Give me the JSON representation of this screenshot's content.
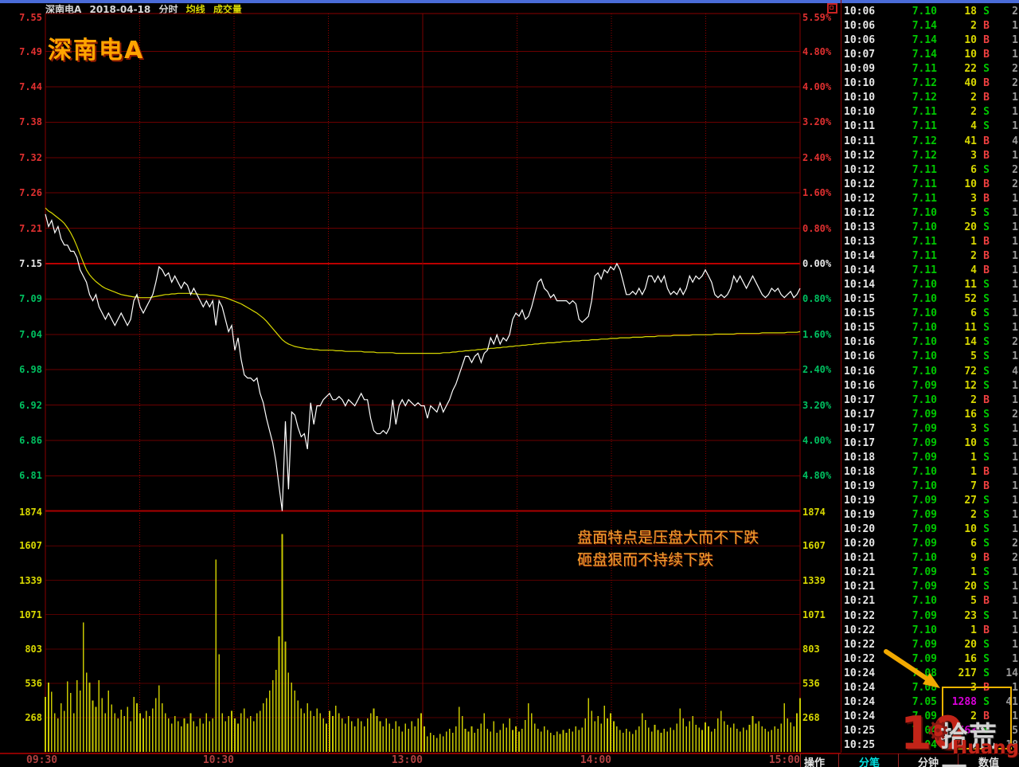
{
  "header": {
    "stock_name": "深南电A",
    "date": "2018-04-18",
    "chart_type": "分时",
    "legend_avg": "均线",
    "legend_vol": "成交量"
  },
  "watermark_title": "深南电A",
  "annotation": {
    "line1": "盘面特点是压盘大而不下跌",
    "line2": "砸盘狠而不持续下跌"
  },
  "site_watermark": {
    "logo": "10",
    "site_name": "拾荒网",
    "domain": "Huang.CN",
    "gear_icon": "⚙"
  },
  "bottom_bar": {
    "action": "操作",
    "tabs": [
      "分笔",
      "分钟",
      "数值"
    ],
    "active_tab": "分笔"
  },
  "axes": {
    "price_labels": [
      "7.55",
      "7.49",
      "7.44",
      "7.38",
      "7.32",
      "7.26",
      "7.21",
      "7.15",
      "7.09",
      "7.04",
      "6.98",
      "6.92",
      "6.86",
      "6.81"
    ],
    "pct_labels": [
      "5.59%",
      "4.80%",
      "4.00%",
      "3.20%",
      "2.40%",
      "1.60%",
      "0.80%",
      "0.00%",
      "0.80%",
      "1.60%",
      "2.40%",
      "3.20%",
      "4.00%",
      "4.80%"
    ],
    "pct_values": [
      5.59,
      4.8,
      4.0,
      3.2,
      2.4,
      1.6,
      0.8,
      0.0,
      -0.8,
      -1.6,
      -2.4,
      -3.2,
      -4.0,
      -4.8
    ],
    "volume_labels": [
      "1874",
      "1607",
      "1339",
      "1071",
      "803",
      "536",
      "268"
    ],
    "volume_values": [
      1874,
      1607,
      1339,
      1071,
      803,
      536,
      268
    ],
    "time_labels": [
      "09:30",
      "10:30",
      "13:00",
      "14:00",
      "15:00"
    ]
  },
  "colors": {
    "up": "#e03030",
    "down": "#00c060",
    "flat": "#e8e8e8",
    "volume": "#c8c800",
    "price_line": "#ffffff",
    "avg_line": "#d8d800",
    "grid": "#6b0000",
    "accent_box": "#f0b400",
    "magenta_big": "#d800d8",
    "tab_active": "#00e0e0"
  },
  "chart_data": {
    "type": "line",
    "title": "深南电A 2018-04-18 分时",
    "prev_close": 7.15,
    "ylim_pct": [
      -5.59,
      5.59
    ],
    "volume_max": 1874,
    "x_sessions": [
      "09:30-11:30",
      "13:00-15:00"
    ],
    "series": [
      {
        "name": "price",
        "values": [
          7.23,
          7.21,
          7.22,
          7.2,
          7.21,
          7.19,
          7.18,
          7.18,
          7.17,
          7.17,
          7.16,
          7.14,
          7.13,
          7.12,
          7.1,
          7.09,
          7.1,
          7.08,
          7.07,
          7.06,
          7.07,
          7.06,
          7.05,
          7.06,
          7.07,
          7.06,
          7.05,
          7.06,
          7.09,
          7.1,
          7.08,
          7.07,
          7.08,
          7.09,
          7.1,
          7.12,
          7.145,
          7.14,
          7.13,
          7.135,
          7.12,
          7.13,
          7.12,
          7.11,
          7.12,
          7.115,
          7.1,
          7.11,
          7.1,
          7.09,
          7.08,
          7.09,
          7.08,
          7.09,
          7.05,
          7.09,
          7.08,
          7.06,
          7.04,
          7.05,
          7.01,
          7.03,
          6.995,
          6.97,
          6.965,
          6.965,
          6.96,
          6.965,
          6.94,
          6.925,
          6.9,
          6.88,
          6.86,
          6.83,
          6.79,
          6.75,
          6.895,
          6.785,
          6.91,
          6.905,
          6.885,
          6.87,
          6.875,
          6.85,
          6.925,
          6.89,
          6.92,
          6.92,
          6.93,
          6.935,
          6.94,
          6.93,
          6.93,
          6.935,
          6.93,
          6.92,
          6.93,
          6.925,
          6.92,
          6.93,
          6.94,
          6.93,
          6.93,
          6.9,
          6.88,
          6.875,
          6.875,
          6.88,
          6.875,
          6.885,
          6.93,
          6.89,
          6.92,
          6.93,
          6.92,
          6.93,
          6.925,
          6.92,
          6.925,
          6.92,
          6.92,
          6.9,
          6.92,
          6.915,
          6.91,
          6.925,
          6.91,
          6.92,
          6.93,
          6.945,
          6.955,
          6.97,
          6.985,
          7.0,
          7.0,
          6.99,
          7.0,
          7.005,
          6.99,
          7.005,
          7.01,
          7.03,
          7.02,
          7.035,
          7.02,
          7.03,
          7.025,
          7.035,
          7.06,
          7.07,
          7.065,
          7.075,
          7.06,
          7.065,
          7.08,
          7.1,
          7.12,
          7.125,
          7.11,
          7.105,
          7.095,
          7.1,
          7.09,
          7.09,
          7.09,
          7.09,
          7.085,
          7.09,
          7.085,
          7.06,
          7.055,
          7.06,
          7.065,
          7.09,
          7.13,
          7.135,
          7.125,
          7.14,
          7.135,
          7.145,
          7.14,
          7.15,
          7.14,
          7.12,
          7.1,
          7.1,
          7.105,
          7.1,
          7.11,
          7.1,
          7.11,
          7.13,
          7.13,
          7.12,
          7.13,
          7.12,
          7.13,
          7.11,
          7.1,
          7.105,
          7.1,
          7.11,
          7.1,
          7.11,
          7.13,
          7.12,
          7.13,
          7.125,
          7.13,
          7.14,
          7.13,
          7.12,
          7.1,
          7.095,
          7.1,
          7.095,
          7.1,
          7.11,
          7.13,
          7.12,
          7.13,
          7.12,
          7.11,
          7.12,
          7.13,
          7.12,
          7.11,
          7.1,
          7.095,
          7.1,
          7.11,
          7.105,
          7.11,
          7.1,
          7.095,
          7.1,
          7.105,
          7.095,
          7.1,
          7.11
        ]
      },
      {
        "name": "average",
        "values": [
          7.24,
          7.235,
          7.232,
          7.228,
          7.224,
          7.22,
          7.215,
          7.208,
          7.2,
          7.19,
          7.178,
          7.165,
          7.152,
          7.14,
          7.132,
          7.126,
          7.121,
          7.117,
          7.113,
          7.11,
          7.108,
          7.106,
          7.104,
          7.102,
          7.1,
          7.099,
          7.098,
          7.097,
          7.096,
          7.096,
          7.095,
          7.095,
          7.095,
          7.095,
          7.096,
          7.097,
          7.098,
          7.099,
          7.1,
          7.1,
          7.101,
          7.101,
          7.102,
          7.102,
          7.102,
          7.102,
          7.102,
          7.101,
          7.101,
          7.1,
          7.1,
          7.1,
          7.099,
          7.099,
          7.098,
          7.097,
          7.096,
          7.095,
          7.093,
          7.091,
          7.089,
          7.087,
          7.085,
          7.082,
          7.079,
          7.076,
          7.073,
          7.07,
          7.066,
          7.062,
          7.057,
          7.051,
          7.045,
          7.039,
          7.033,
          7.027,
          7.023,
          7.02,
          7.018,
          7.016,
          7.015,
          7.014,
          7.013,
          7.012,
          7.012,
          7.011,
          7.011,
          7.01,
          7.01,
          7.01,
          7.01,
          7.01,
          7.009,
          7.009,
          7.009,
          7.008,
          7.008,
          7.008,
          7.008,
          7.008,
          7.008,
          7.007,
          7.007,
          7.007,
          7.007,
          7.006,
          7.006,
          7.006,
          7.006,
          7.006,
          7.006,
          7.005,
          7.005,
          7.005,
          7.005,
          7.005,
          7.005,
          7.005,
          7.005,
          7.005,
          7.005,
          7.005,
          7.005,
          7.005,
          7.005,
          7.005,
          7.006,
          7.006,
          7.006,
          7.007,
          7.007,
          7.008,
          7.008,
          7.009,
          7.009,
          7.01,
          7.01,
          7.011,
          7.011,
          7.012,
          7.012,
          7.013,
          7.013,
          7.014,
          7.014,
          7.015,
          7.015,
          7.016,
          7.016,
          7.017,
          7.017,
          7.018,
          7.018,
          7.019,
          7.019,
          7.02,
          7.02,
          7.021,
          7.021,
          7.022,
          7.022,
          7.022,
          7.023,
          7.023,
          7.024,
          7.024,
          7.024,
          7.025,
          7.025,
          7.025,
          7.026,
          7.026,
          7.026,
          7.027,
          7.027,
          7.027,
          7.028,
          7.028,
          7.028,
          7.029,
          7.029,
          7.029,
          7.03,
          7.03,
          7.03,
          7.03,
          7.031,
          7.031,
          7.031,
          7.031,
          7.032,
          7.032,
          7.032,
          7.032,
          7.033,
          7.033,
          7.033,
          7.033,
          7.033,
          7.034,
          7.034,
          7.034,
          7.034,
          7.034,
          7.034,
          7.035,
          7.035,
          7.035,
          7.035,
          7.035,
          7.035,
          7.035,
          7.036,
          7.036,
          7.036,
          7.036,
          7.036,
          7.036,
          7.036,
          7.037,
          7.037,
          7.037,
          7.037,
          7.037,
          7.037,
          7.037,
          7.037,
          7.038,
          7.038,
          7.038,
          7.038,
          7.038,
          7.038,
          7.038,
          7.038,
          7.039,
          7.039,
          7.039,
          7.039,
          7.04
        ]
      }
    ],
    "volume": [
      430,
      540,
      470,
      300,
      260,
      380,
      320,
      550,
      460,
      300,
      560,
      480,
      1010,
      620,
      540,
      400,
      350,
      560,
      420,
      300,
      480,
      370,
      300,
      260,
      330,
      280,
      350,
      240,
      430,
      380,
      300,
      260,
      320,
      280,
      340,
      420,
      520,
      380,
      300,
      260,
      220,
      280,
      240,
      200,
      260,
      220,
      300,
      240,
      200,
      260,
      220,
      300,
      240,
      260,
      1500,
      760,
      300,
      240,
      280,
      320,
      260,
      220,
      300,
      340,
      260,
      280,
      240,
      300,
      320,
      380,
      420,
      480,
      560,
      640,
      900,
      1700,
      860,
      620,
      540,
      480,
      400,
      340,
      300,
      380,
      320,
      280,
      340,
      300,
      260,
      220,
      320,
      280,
      360,
      300,
      260,
      220,
      280,
      240,
      200,
      260,
      240,
      200,
      260,
      300,
      340,
      280,
      240,
      200,
      260,
      220,
      180,
      240,
      200,
      160,
      220,
      180,
      240,
      200,
      260,
      300,
      200,
      120,
      150,
      130,
      110,
      140,
      120,
      160,
      180,
      150,
      200,
      350,
      280,
      180,
      160,
      200,
      150,
      180,
      220,
      300,
      180,
      160,
      240,
      150,
      170,
      220,
      190,
      260,
      170,
      200,
      160,
      180,
      250,
      380,
      300,
      220,
      180,
      160,
      200,
      170,
      150,
      130,
      160,
      140,
      170,
      150,
      180,
      160,
      200,
      170,
      190,
      260,
      420,
      320,
      240,
      280,
      220,
      360,
      260,
      300,
      240,
      200,
      170,
      150,
      180,
      160,
      140,
      170,
      200,
      300,
      250,
      190,
      160,
      210,
      170,
      150,
      180,
      160,
      190,
      170,
      220,
      340,
      260,
      200,
      240,
      280,
      210,
      190,
      170,
      230,
      200,
      160,
      180,
      260,
      320,
      240,
      210,
      190,
      220,
      180,
      160,
      190,
      170,
      210,
      280,
      220,
      240,
      200,
      180,
      160,
      170,
      200,
      180,
      220,
      380,
      260,
      230,
      200,
      300,
      420
    ]
  },
  "ticks": [
    [
      "10:06",
      "7.10",
      "18",
      "S",
      "2",
      ""
    ],
    [
      "10:06",
      "7.14",
      "2",
      "B",
      "1",
      ""
    ],
    [
      "10:06",
      "7.14",
      "10",
      "B",
      "1",
      ""
    ],
    [
      "10:07",
      "7.14",
      "10",
      "B",
      "1",
      ""
    ],
    [
      "10:09",
      "7.11",
      "22",
      "S",
      "2",
      ""
    ],
    [
      "10:10",
      "7.12",
      "40",
      "B",
      "2",
      ""
    ],
    [
      "10:10",
      "7.12",
      "2",
      "B",
      "1",
      ""
    ],
    [
      "10:10",
      "7.11",
      "2",
      "S",
      "1",
      ""
    ],
    [
      "10:11",
      "7.11",
      "4",
      "S",
      "1",
      ""
    ],
    [
      "10:11",
      "7.12",
      "41",
      "B",
      "4",
      ""
    ],
    [
      "10:12",
      "7.12",
      "3",
      "B",
      "1",
      ""
    ],
    [
      "10:12",
      "7.11",
      "6",
      "S",
      "2",
      ""
    ],
    [
      "10:12",
      "7.11",
      "10",
      "B",
      "2",
      ""
    ],
    [
      "10:12",
      "7.11",
      "3",
      "B",
      "1",
      ""
    ],
    [
      "10:12",
      "7.10",
      "5",
      "S",
      "1",
      ""
    ],
    [
      "10:13",
      "7.10",
      "20",
      "S",
      "1",
      ""
    ],
    [
      "10:13",
      "7.11",
      "1",
      "B",
      "1",
      ""
    ],
    [
      "10:14",
      "7.11",
      "2",
      "B",
      "1",
      ""
    ],
    [
      "10:14",
      "7.11",
      "4",
      "B",
      "1",
      ""
    ],
    [
      "10:14",
      "7.10",
      "11",
      "S",
      "1",
      ""
    ],
    [
      "10:15",
      "7.10",
      "52",
      "S",
      "1",
      ""
    ],
    [
      "10:15",
      "7.10",
      "6",
      "S",
      "1",
      ""
    ],
    [
      "10:15",
      "7.10",
      "11",
      "S",
      "1",
      ""
    ],
    [
      "10:16",
      "7.10",
      "14",
      "S",
      "2",
      ""
    ],
    [
      "10:16",
      "7.10",
      "5",
      "S",
      "1",
      ""
    ],
    [
      "10:16",
      "7.10",
      "72",
      "S",
      "4",
      ""
    ],
    [
      "10:16",
      "7.09",
      "12",
      "S",
      "1",
      ""
    ],
    [
      "10:17",
      "7.10",
      "2",
      "B",
      "1",
      ""
    ],
    [
      "10:17",
      "7.09",
      "16",
      "S",
      "2",
      ""
    ],
    [
      "10:17",
      "7.09",
      "3",
      "S",
      "1",
      ""
    ],
    [
      "10:17",
      "7.09",
      "10",
      "S",
      "1",
      ""
    ],
    [
      "10:18",
      "7.09",
      "1",
      "S",
      "1",
      ""
    ],
    [
      "10:18",
      "7.10",
      "1",
      "B",
      "1",
      ""
    ],
    [
      "10:19",
      "7.10",
      "7",
      "B",
      "1",
      ""
    ],
    [
      "10:19",
      "7.09",
      "27",
      "S",
      "1",
      ""
    ],
    [
      "10:19",
      "7.09",
      "2",
      "S",
      "1",
      ""
    ],
    [
      "10:20",
      "7.09",
      "10",
      "S",
      "1",
      ""
    ],
    [
      "10:20",
      "7.09",
      "6",
      "S",
      "2",
      ""
    ],
    [
      "10:21",
      "7.10",
      "9",
      "B",
      "2",
      ""
    ],
    [
      "10:21",
      "7.09",
      "1",
      "S",
      "1",
      ""
    ],
    [
      "10:21",
      "7.09",
      "20",
      "S",
      "1",
      ""
    ],
    [
      "10:21",
      "7.10",
      "5",
      "B",
      "1",
      ""
    ],
    [
      "10:22",
      "7.09",
      "23",
      "S",
      "1",
      ""
    ],
    [
      "10:22",
      "7.10",
      "1",
      "B",
      "1",
      ""
    ],
    [
      "10:22",
      "7.09",
      "20",
      "S",
      "1",
      ""
    ],
    [
      "10:22",
      "7.09",
      "16",
      "S",
      "1",
      ""
    ],
    [
      "10:24",
      "7.08",
      "217",
      "S",
      "14",
      ""
    ],
    [
      "10:24",
      "7.08",
      "3",
      "B",
      "1",
      ""
    ],
    [
      "10:24",
      "7.05",
      "1288",
      "S",
      "41",
      "big"
    ],
    [
      "10:24",
      "7.09",
      "2",
      "B",
      "1",
      ""
    ],
    [
      "10:25",
      "7.04",
      "663",
      "S",
      "5",
      "big"
    ],
    [
      "10:25",
      "7.04",
      "",
      "",
      "18",
      ""
    ]
  ]
}
